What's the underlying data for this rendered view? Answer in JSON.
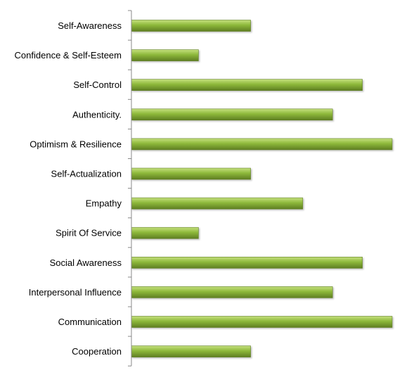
{
  "chart_data": {
    "type": "bar",
    "orientation": "horizontal",
    "categories": [
      "Self-Awareness",
      "Confidence & Self-Esteem",
      "Self-Control",
      "Authenticity.",
      "Optimism & Resilience",
      "Self-Actualization",
      "Empathy",
      "Spirit Of Service",
      "Social Awareness",
      "Interpersonal  Influence",
      "Communication",
      "Cooperation"
    ],
    "series": [
      {
        "values": [
          4,
          2.25,
          7.75,
          6.75,
          8.75,
          4,
          5.75,
          2.25,
          7.75,
          6.75,
          8.75,
          4
        ]
      }
    ],
    "xlim": [
      0,
      8.75
    ],
    "title": "",
    "xlabel": "",
    "ylabel": "",
    "grid": false,
    "legend": "none",
    "bar_color": "#8db83a",
    "bar_highlight": "#c5e07e",
    "bar_shadow": "#5e7e22",
    "axis_color": "#888888"
  }
}
